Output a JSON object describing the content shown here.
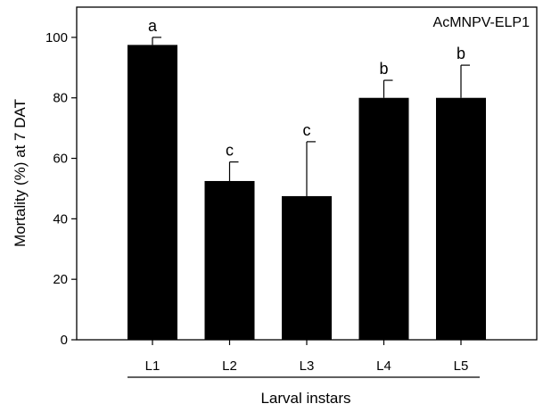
{
  "chart_data": {
    "type": "bar",
    "panel_label": "AcMNPV-ELP1",
    "xlabel": "Larval instars",
    "ylabel": "Mortality (%) at 7 DAT",
    "categories": [
      "L1",
      "L2",
      "L3",
      "L4",
      "L5"
    ],
    "values": [
      97.5,
      52.5,
      47.5,
      80,
      80
    ],
    "errors": [
      2.5,
      6.3,
      18,
      5.8,
      10.8
    ],
    "letters": [
      "a",
      "c",
      "c",
      "b",
      "b"
    ],
    "ylim": [
      0,
      110
    ],
    "yticks": [
      0,
      20,
      40,
      60,
      80,
      100
    ],
    "grid": false,
    "bar_color": "#000000"
  }
}
